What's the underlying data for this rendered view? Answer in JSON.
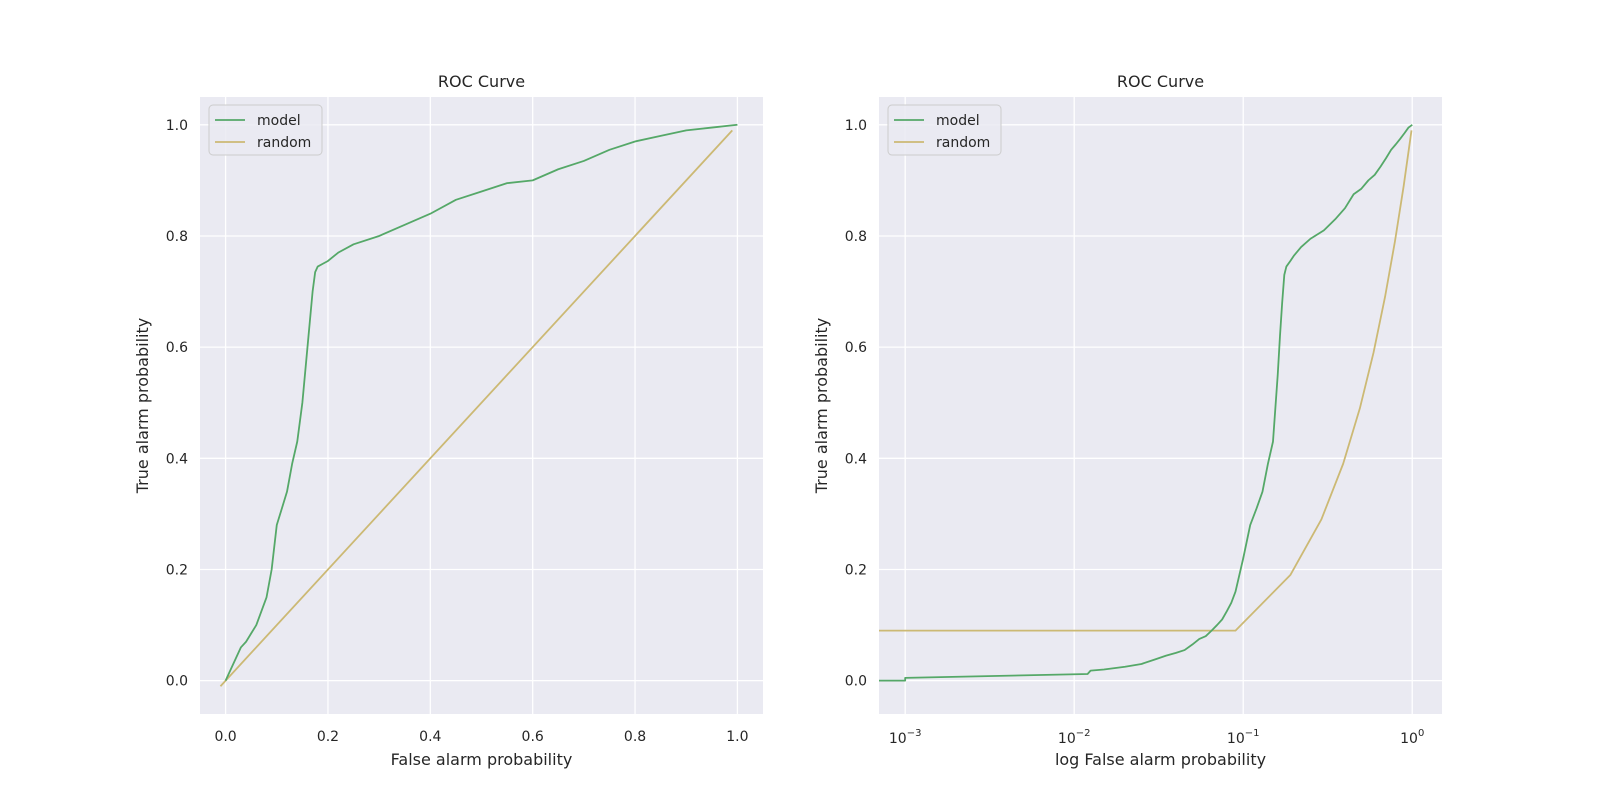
{
  "colors": {
    "background": "#ffffff",
    "axes_background": "#eaeaf2",
    "grid": "#ffffff",
    "model": "#55a868",
    "random": "#ccb974",
    "text": "#262626"
  },
  "chart_data": [
    {
      "type": "line",
      "title": "ROC Curve",
      "xlabel": "False alarm probability",
      "ylabel": "True alarm probability",
      "xscale": "linear",
      "xlim": [
        -0.05,
        1.05
      ],
      "ylim": [
        -0.06,
        1.05
      ],
      "xticks": [
        0.0,
        0.2,
        0.4,
        0.6,
        0.8,
        1.0
      ],
      "xtick_labels": [
        "0.0",
        "0.2",
        "0.4",
        "0.6",
        "0.8",
        "1.0"
      ],
      "yticks": [
        0.0,
        0.2,
        0.4,
        0.6,
        0.8,
        1.0
      ],
      "ytick_labels": [
        "0.0",
        "0.2",
        "0.4",
        "0.6",
        "0.8",
        "1.0"
      ],
      "grid": true,
      "legend": "upper-left",
      "series": [
        {
          "name": "model",
          "color": "#55a868",
          "x": [
            0.0,
            0.01,
            0.02,
            0.03,
            0.04,
            0.05,
            0.06,
            0.07,
            0.08,
            0.09,
            0.1,
            0.11,
            0.12,
            0.13,
            0.14,
            0.15,
            0.16,
            0.165,
            0.17,
            0.175,
            0.18,
            0.19,
            0.2,
            0.22,
            0.25,
            0.3,
            0.35,
            0.4,
            0.45,
            0.5,
            0.55,
            0.6,
            0.65,
            0.7,
            0.75,
            0.8,
            0.85,
            0.9,
            0.95,
            1.0
          ],
          "y": [
            0.0,
            0.02,
            0.04,
            0.06,
            0.07,
            0.085,
            0.1,
            0.125,
            0.15,
            0.2,
            0.28,
            0.31,
            0.34,
            0.39,
            0.43,
            0.5,
            0.6,
            0.65,
            0.7,
            0.735,
            0.745,
            0.75,
            0.755,
            0.77,
            0.785,
            0.8,
            0.82,
            0.84,
            0.865,
            0.88,
            0.895,
            0.9,
            0.92,
            0.935,
            0.955,
            0.97,
            0.98,
            0.99,
            0.995,
            1.0
          ]
        },
        {
          "name": "random",
          "color": "#ccb974",
          "x": [
            -0.01,
            0.99
          ],
          "y": [
            -0.01,
            0.99
          ]
        }
      ]
    },
    {
      "type": "line",
      "title": "ROC Curve",
      "xlabel": "log False alarm probability",
      "ylabel": "True alarm probability",
      "xscale": "log",
      "xlim": [
        0.0007,
        1.5
      ],
      "ylim": [
        -0.06,
        1.05
      ],
      "xticks": [
        0.001,
        0.01,
        0.1,
        1.0
      ],
      "xtick_labels": [
        {
          "base": "10",
          "exp": "−3"
        },
        {
          "base": "10",
          "exp": "−2"
        },
        {
          "base": "10",
          "exp": "−1"
        },
        {
          "base": "10",
          "exp": "0"
        }
      ],
      "yticks": [
        0.0,
        0.2,
        0.4,
        0.6,
        0.8,
        1.0
      ],
      "ytick_labels": [
        "0.0",
        "0.2",
        "0.4",
        "0.6",
        "0.8",
        "1.0"
      ],
      "grid": true,
      "legend": "upper-left",
      "series": [
        {
          "name": "model",
          "color": "#55a868",
          "x": [
            0.0007,
            0.001,
            0.001,
            0.012,
            0.0125,
            0.015,
            0.02,
            0.025,
            0.03,
            0.035,
            0.04,
            0.045,
            0.05,
            0.055,
            0.06,
            0.065,
            0.07,
            0.075,
            0.08,
            0.085,
            0.09,
            0.1,
            0.11,
            0.12,
            0.13,
            0.14,
            0.15,
            0.16,
            0.165,
            0.17,
            0.175,
            0.18,
            0.19,
            0.2,
            0.22,
            0.25,
            0.3,
            0.35,
            0.4,
            0.45,
            0.5,
            0.55,
            0.6,
            0.65,
            0.7,
            0.75,
            0.8,
            0.85,
            0.9,
            0.95,
            1.0
          ],
          "y": [
            0.0,
            0.0,
            0.005,
            0.012,
            0.018,
            0.02,
            0.025,
            0.03,
            0.038,
            0.045,
            0.05,
            0.055,
            0.065,
            0.075,
            0.08,
            0.09,
            0.1,
            0.11,
            0.125,
            0.14,
            0.16,
            0.22,
            0.28,
            0.31,
            0.34,
            0.39,
            0.43,
            0.55,
            0.62,
            0.68,
            0.73,
            0.745,
            0.755,
            0.765,
            0.78,
            0.795,
            0.81,
            0.83,
            0.85,
            0.875,
            0.885,
            0.9,
            0.91,
            0.925,
            0.94,
            0.955,
            0.965,
            0.975,
            0.985,
            0.995,
            1.0
          ]
        },
        {
          "name": "random",
          "color": "#ccb974",
          "x": [
            0.0007,
            0.09,
            0.19,
            0.29,
            0.39,
            0.49,
            0.59,
            0.69,
            0.79,
            0.89,
            0.99
          ],
          "y": [
            0.09,
            0.09,
            0.19,
            0.29,
            0.39,
            0.49,
            0.59,
            0.69,
            0.79,
            0.89,
            0.99
          ]
        }
      ]
    }
  ]
}
